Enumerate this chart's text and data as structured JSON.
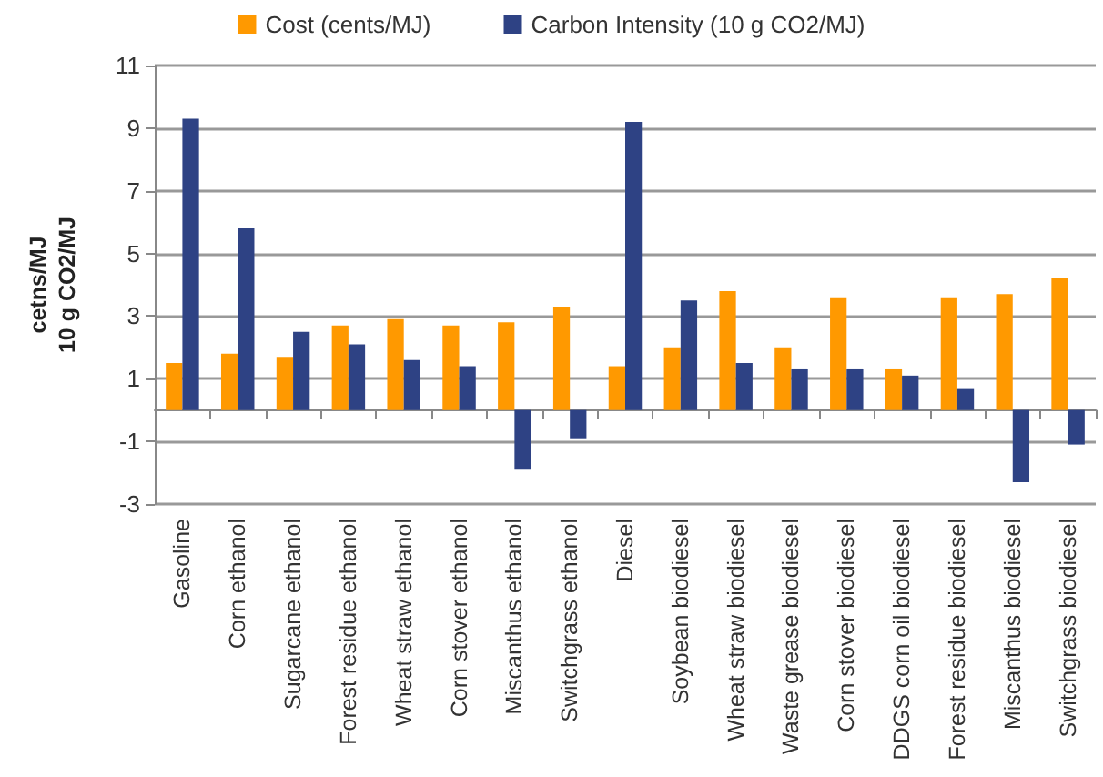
{
  "chart_data": {
    "type": "bar",
    "ylabel": "cetns/MJ\n10 g CO2/MJ",
    "categories": [
      "Gasoline",
      "Corn ethanol",
      "Sugarcane ethanol",
      "Forest residue ethanol",
      "Wheat straw ethanol",
      "Corn stover ethanol",
      "Miscanthus ethanol",
      "Switchgrass ethanol",
      "Diesel",
      "Soybean biodiesel",
      "Wheat straw biodiesel",
      "Waste grease biodiesel",
      "Corn stover biodiesel",
      "DDGS corn oil biodiesel",
      "Forest residue biodiesel",
      "Miscanthus biodiesel",
      "Switchgrass biodiesel"
    ],
    "series": [
      {
        "name": "Cost (cents/MJ)",
        "color": "#ff9900",
        "values": [
          1.5,
          1.8,
          1.7,
          2.7,
          2.9,
          2.7,
          2.8,
          3.3,
          1.4,
          2.0,
          3.8,
          2.0,
          3.6,
          1.3,
          3.6,
          3.7,
          4.2
        ]
      },
      {
        "name": "Carbon Intensity (10 g CO2/MJ)",
        "color": "#2e4284",
        "values": [
          9.3,
          5.8,
          2.5,
          2.1,
          1.6,
          1.4,
          -1.9,
          -0.9,
          9.2,
          3.5,
          1.5,
          1.3,
          1.3,
          1.1,
          0.7,
          -2.3,
          -1.1
        ]
      }
    ],
    "ylim": [
      -3,
      11
    ],
    "yticks": [
      -3,
      -1,
      1,
      3,
      5,
      7,
      9,
      11
    ],
    "grid": "y",
    "legend": "top"
  }
}
